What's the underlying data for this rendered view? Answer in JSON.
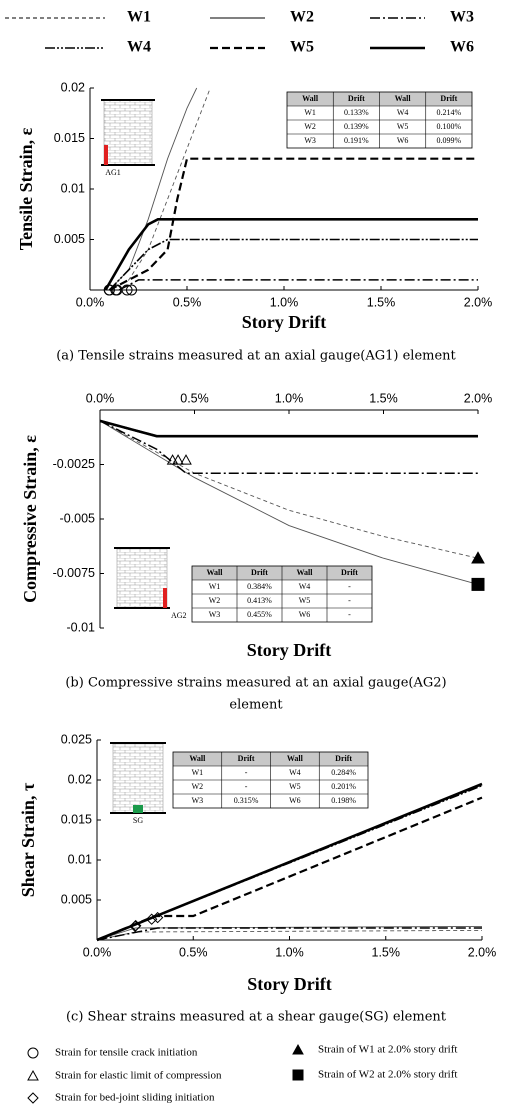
{
  "chart_data": [
    {
      "type": "line",
      "ylabel": "Tensile Strain, ε",
      "xlabel": "Story Drift",
      "x_axis_position": "bottom",
      "caption": [
        "(a) Tensile strains measured at an axial gauge(AG1) element"
      ],
      "gauge_label": "AG1",
      "gauge_color": "#e02020",
      "gauge_position": "left",
      "xlim": [
        0,
        2
      ],
      "xticks": [
        {
          "value": 0,
          "label": "0.0%"
        },
        {
          "value": 0.5,
          "label": "0.5%"
        },
        {
          "value": 1,
          "label": "1.0%"
        },
        {
          "value": 1.5,
          "label": "1.5%"
        },
        {
          "value": 2,
          "label": "2.0%"
        }
      ],
      "ylim": [
        0,
        0.02
      ],
      "yticks": [
        0.005,
        0.01,
        0.015,
        0.02
      ],
      "series": [
        {
          "name": "W1",
          "color": "#555555",
          "style": "thin-dashed",
          "x": [
            0.1,
            0.2,
            0.3,
            0.4,
            0.5,
            0.62
          ],
          "values": [
            0,
            0.001,
            0.004,
            0.009,
            0.014,
            0.02
          ]
        },
        {
          "name": "W2",
          "color": "#555555",
          "style": "thin-solid",
          "x": [
            0.1,
            0.2,
            0.3,
            0.4,
            0.5,
            0.55
          ],
          "values": [
            0,
            0.002,
            0.007,
            0.013,
            0.018,
            0.02
          ]
        },
        {
          "name": "W3",
          "color": "#000000",
          "style": "dash-dot",
          "x": [
            0.15,
            0.2,
            0.25,
            2
          ],
          "values": [
            0,
            0.0005,
            0.001,
            0.001
          ]
        },
        {
          "name": "W4",
          "color": "#000000",
          "style": "dash-dot-dot",
          "x": [
            0.1,
            0.2,
            0.3,
            0.4,
            0.45,
            2
          ],
          "values": [
            0,
            0.002,
            0.004,
            0.005,
            0.005,
            0.005
          ]
        },
        {
          "name": "W5",
          "color": "#000000",
          "style": "thick-dashed",
          "x": [
            0.1,
            0.3,
            0.4,
            0.45,
            0.5,
            2
          ],
          "values": [
            0,
            0.002,
            0.004,
            0.009,
            0.013,
            0.013
          ]
        },
        {
          "name": "W6",
          "color": "#000000",
          "style": "thick-solid",
          "x": [
            0.08,
            0.2,
            0.3,
            0.35,
            2
          ],
          "values": [
            0,
            0.004,
            0.0065,
            0.007,
            0.007
          ]
        }
      ],
      "markers": {
        "shape": "circle",
        "x": [
          0.133,
          0.139,
          0.191,
          0.214,
          0.1,
          0.099
        ],
        "y": [
          0,
          0,
          0,
          0,
          0,
          0
        ]
      },
      "table": {
        "header": [
          "Wall",
          "Drift",
          "Wall",
          "Drift"
        ],
        "rows": [
          [
            "W1",
            "0.133%",
            "W4",
            "0.214%"
          ],
          [
            "W2",
            "0.139%",
            "W5",
            "0.100%"
          ],
          [
            "W3",
            "0.191%",
            "W6",
            "0.099%"
          ]
        ]
      }
    },
    {
      "type": "line",
      "ylabel": "Compressive Strain, ε",
      "xlabel": "Story Drift",
      "x_axis_position": "top",
      "caption": [
        "(b) Compressive strains measured at an axial gauge(AG2)",
        "element"
      ],
      "gauge_label": "AG2",
      "gauge_color": "#e02020",
      "gauge_position": "right",
      "xlim": [
        0,
        2
      ],
      "xticks": [
        {
          "value": 0,
          "label": "0.0%"
        },
        {
          "value": 0.5,
          "label": "0.5%"
        },
        {
          "value": 1,
          "label": "1.0%"
        },
        {
          "value": 1.5,
          "label": "1.5%"
        },
        {
          "value": 2,
          "label": "2.0%"
        }
      ],
      "ylim": [
        -0.01,
        0
      ],
      "yticks": [
        -0.0025,
        -0.005,
        -0.0075,
        -0.01
      ],
      "series": [
        {
          "name": "W1",
          "color": "#555555",
          "style": "thin-dashed",
          "x": [
            0,
            0.5,
            1,
            1.5,
            2
          ],
          "values": [
            -0.0005,
            -0.0029,
            -0.0046,
            -0.0058,
            -0.0068
          ]
        },
        {
          "name": "W2",
          "color": "#555555",
          "style": "thin-solid",
          "x": [
            0,
            0.5,
            1,
            1.5,
            2
          ],
          "values": [
            -0.0005,
            -0.0031,
            -0.0053,
            -0.0068,
            -0.008
          ]
        },
        {
          "name": "W3",
          "color": "#000000",
          "style": "dash-dot",
          "x": [
            0,
            0.3,
            0.455,
            2
          ],
          "values": [
            -0.0005,
            -0.0018,
            -0.0029,
            -0.0029
          ]
        },
        {
          "name": "W4",
          "color": "#000000",
          "style": "dash-dot-dot",
          "x": [
            0,
            0.3,
            2
          ],
          "values": [
            -0.0005,
            -0.0012,
            -0.0012
          ]
        },
        {
          "name": "W5",
          "color": "#000000",
          "style": "thick-dashed",
          "x": [
            0,
            0.3,
            2
          ],
          "values": [
            -0.0005,
            -0.0012,
            -0.0012
          ]
        },
        {
          "name": "W6",
          "color": "#000000",
          "style": "thick-solid",
          "x": [
            0,
            0.3,
            2
          ],
          "values": [
            -0.0005,
            -0.0012,
            -0.0012
          ]
        }
      ],
      "markers": {
        "shape": "triangle-open",
        "x": [
          0.384,
          0.413,
          0.455
        ],
        "y": [
          -0.0023,
          -0.0023,
          -0.0023
        ]
      },
      "end_markers": [
        {
          "shape": "triangle",
          "x": 2,
          "y": -0.0068
        },
        {
          "shape": "square",
          "x": 2,
          "y": -0.008
        }
      ],
      "table": {
        "header": [
          "Wall",
          "Drift",
          "Wall",
          "Drift"
        ],
        "rows": [
          [
            "W1",
            "0.384%",
            "W4",
            "-"
          ],
          [
            "W2",
            "0.413%",
            "W5",
            "-"
          ],
          [
            "W3",
            "0.455%",
            "W6",
            "-"
          ]
        ]
      }
    },
    {
      "type": "line",
      "ylabel": "Shear Strain, τ",
      "xlabel": "Story Drift",
      "x_axis_position": "bottom",
      "caption": [
        "(c) Shear strains measured at a shear gauge(SG) element"
      ],
      "gauge_label": "SG",
      "gauge_color": "#1a9a4a",
      "gauge_position": "center",
      "xlim": [
        0,
        2
      ],
      "xticks": [
        {
          "value": 0,
          "label": "0.0%"
        },
        {
          "value": 0.5,
          "label": "0.5%"
        },
        {
          "value": 1,
          "label": "1.0%"
        },
        {
          "value": 1.5,
          "label": "1.5%"
        },
        {
          "value": 2,
          "label": "2.0%"
        }
      ],
      "ylim": [
        0,
        0.025
      ],
      "yticks": [
        0.005,
        0.01,
        0.015,
        0.02,
        0.025
      ],
      "series": [
        {
          "name": "W1",
          "color": "#555555",
          "style": "thin-dashed",
          "x": [
            0,
            0.2,
            2
          ],
          "values": [
            0,
            0.001,
            0.0012
          ]
        },
        {
          "name": "W2",
          "color": "#555555",
          "style": "thin-solid",
          "x": [
            0,
            0.2,
            2
          ],
          "values": [
            0,
            0.0015,
            0.0017
          ]
        },
        {
          "name": "W3",
          "color": "#000000",
          "style": "dash-dot",
          "x": [
            0,
            0.315,
            2
          ],
          "values": [
            0,
            0.0015,
            0.0015
          ]
        },
        {
          "name": "W4",
          "color": "#000000",
          "style": "dash-dot-dot",
          "x": [
            0,
            2
          ],
          "values": [
            0,
            0.0193
          ]
        },
        {
          "name": "W5",
          "color": "#000000",
          "style": "thick-dashed",
          "x": [
            0,
            0.3,
            0.5,
            2
          ],
          "values": [
            0,
            0.003,
            0.003,
            0.0178
          ]
        },
        {
          "name": "W6",
          "color": "#000000",
          "style": "thick-solid",
          "x": [
            0,
            2
          ],
          "values": [
            0,
            0.0195
          ]
        }
      ],
      "markers": {
        "shape": "diamond",
        "x": [
          0.315,
          0.284,
          0.201,
          0.198
        ],
        "y": [
          0.0028,
          0.0026,
          0.0018,
          0.0017
        ]
      },
      "table": {
        "header": [
          "Wall",
          "Drift",
          "Wall",
          "Drift"
        ],
        "rows": [
          [
            "W1",
            "-",
            "W4",
            "0.284%"
          ],
          [
            "W2",
            "-",
            "W5",
            "0.201%"
          ],
          [
            "W3",
            "0.315%",
            "W6",
            "0.198%"
          ]
        ]
      }
    }
  ],
  "marker_legend": [
    {
      "shape": "circle",
      "label": "Strain for tensile crack initiation"
    },
    {
      "shape": "triangle-open",
      "label": "Strain for elastic limit of compression"
    },
    {
      "shape": "diamond",
      "label": "Strain for bed-joint sliding initiation"
    },
    {
      "shape": "triangle",
      "label": "Strain of W1 at 2.0% story drift"
    },
    {
      "shape": "square",
      "label": "Strain of W2 at 2.0% story drift"
    }
  ]
}
